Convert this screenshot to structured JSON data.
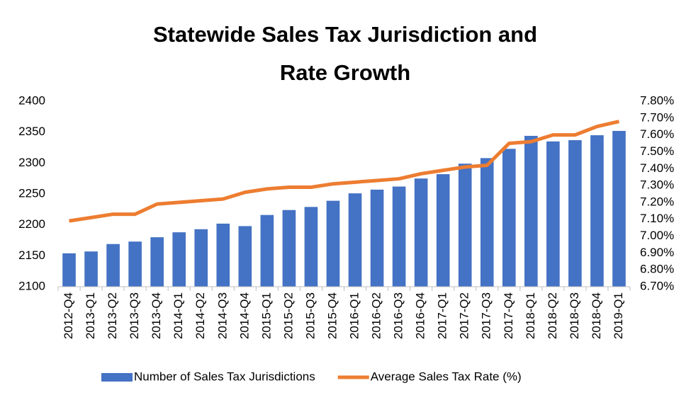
{
  "chart_data": {
    "type": "bar-line",
    "title": "Statewide Sales Tax Jurisdiction and Rate Growth",
    "categories": [
      "2012-Q4",
      "2013-Q1",
      "2013-Q2",
      "2013-Q3",
      "2013-Q4",
      "2014-Q1",
      "2014-Q2",
      "2014-Q3",
      "2014-Q4",
      "2015-Q1",
      "2015-Q2",
      "2015-Q3",
      "2015-Q4",
      "2016-Q1",
      "2016-Q2",
      "2016-Q3",
      "2016-Q4",
      "2017-Q1",
      "2017-Q2",
      "2017-Q3",
      "2017-Q4",
      "2018-Q1",
      "2018-Q2",
      "2018-Q3",
      "2018-Q4",
      "2019-Q1"
    ],
    "series": [
      {
        "name": "Number of Sales Tax Jurisdictions",
        "type": "bar",
        "color": "#4472c4",
        "values": [
          2154,
          2157,
          2169,
          2173,
          2180,
          2188,
          2193,
          2202,
          2198,
          2216,
          2224,
          2229,
          2239,
          2251,
          2257,
          2262,
          2275,
          2282,
          2299,
          2308,
          2323,
          2344,
          2335,
          2337,
          2345,
          2352
        ]
      },
      {
        "name": "Average Sales Tax Rate (%)",
        "type": "line",
        "axis": "y2",
        "color": "#ed7d31",
        "values": [
          7.09,
          7.11,
          7.13,
          7.13,
          7.19,
          7.2,
          7.21,
          7.22,
          7.26,
          7.28,
          7.29,
          7.29,
          7.31,
          7.32,
          7.33,
          7.34,
          7.37,
          7.39,
          7.41,
          7.42,
          7.55,
          7.56,
          7.6,
          7.6,
          7.65,
          7.68
        ]
      }
    ],
    "ylim": [
      2100,
      2400
    ],
    "yticks": [
      2100,
      2150,
      2200,
      2250,
      2300,
      2350,
      2400
    ],
    "y2lim": [
      6.7,
      7.8
    ],
    "y2ticks": [
      {
        "value": 6.7,
        "label": "6.70%"
      },
      {
        "value": 6.8,
        "label": "6.80%"
      },
      {
        "value": 6.9,
        "label": "6.90%"
      },
      {
        "value": 7.0,
        "label": "7.00%"
      },
      {
        "value": 7.1,
        "label": "7.10%"
      },
      {
        "value": 7.2,
        "label": "7.20%"
      },
      {
        "value": 7.3,
        "label": "7.30%"
      },
      {
        "value": 7.4,
        "label": "7.40%"
      },
      {
        "value": 7.5,
        "label": "7.50%"
      },
      {
        "value": 7.6,
        "label": "7.60%"
      },
      {
        "value": 7.7,
        "label": "7.70%"
      },
      {
        "value": 7.8,
        "label": "7.80%"
      }
    ],
    "grid": false,
    "legend": "bottom"
  }
}
